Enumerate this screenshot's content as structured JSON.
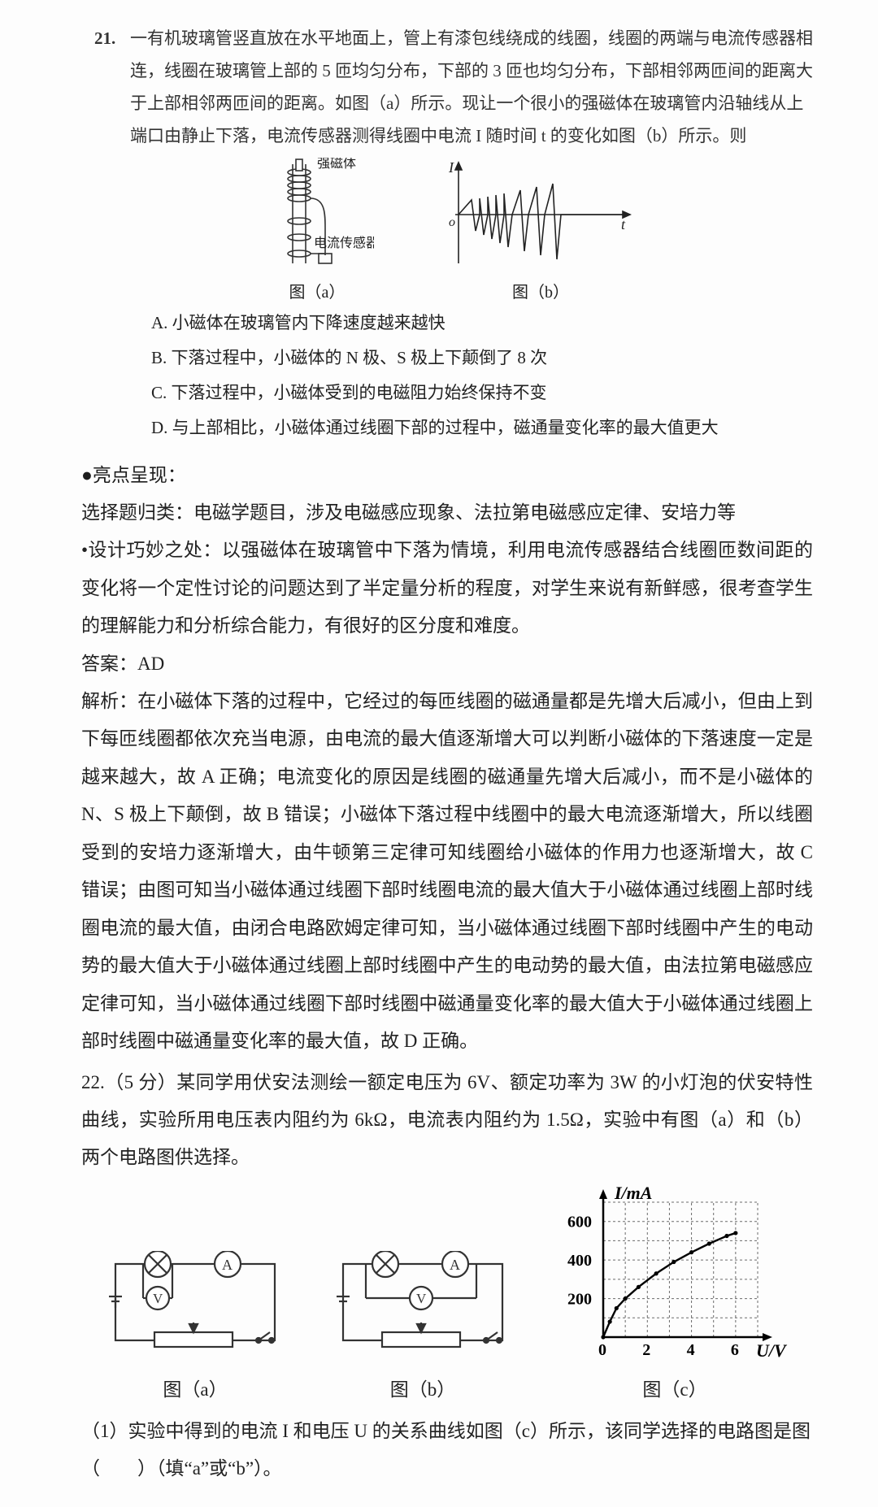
{
  "q21": {
    "num": "21.",
    "body": "一有机玻璃管竖直放在水平地面上，管上有漆包线绕成的线圈，线圈的两端与电流传感器相连，线圈在玻璃管上部的 5 匝均匀分布，下部的 3 匝也均匀分布，下部相邻两匝间的距离大于上部相邻两匝间的距离。如图（a）所示。现让一个很小的强磁体在玻璃管内沿轴线从上端口由静止下落，电流传感器测得线圈中电流 I 随时间 t 的变化如图（b）所示。则",
    "figA": {
      "cap": "图（a）",
      "label_magnet": "强磁体",
      "label_sensor": "电流传感器",
      "colors": {
        "stroke": "#333",
        "bg": "#ffffff"
      }
    },
    "figB": {
      "cap": "图（b）",
      "ylabel": "I",
      "xlabel": "t",
      "peaks": [
        {
          "x": 16,
          "up": 18,
          "dn": 20
        },
        {
          "x": 26,
          "up": 20,
          "dn": 25
        },
        {
          "x": 36,
          "up": 22,
          "dn": 30
        },
        {
          "x": 46,
          "up": 24,
          "dn": 35
        },
        {
          "x": 56,
          "up": 26,
          "dn": 40
        },
        {
          "x": 76,
          "up": 30,
          "dn": 45
        },
        {
          "x": 96,
          "up": 34,
          "dn": 50
        },
        {
          "x": 116,
          "up": 38,
          "dn": 55
        }
      ],
      "axis_color": "#222"
    },
    "opts": {
      "A": "A. 小磁体在玻璃管内下降速度越来越快",
      "B": "B. 下落过程中，小磁体的 N 极、S 极上下颠倒了 8 次",
      "C": "C. 下落过程中，小磁体受到的电磁阻力始终保持不变",
      "D": "D. 与上部相比，小磁体通过线圈下部的过程中，磁通量变化率的最大值更大"
    }
  },
  "highlight": {
    "title": "●亮点呈现：",
    "line1": "选择题归类：电磁学题目，涉及电磁感应现象、法拉第电磁感应定律、安培力等",
    "line2": "•设计巧妙之处：以强磁体在玻璃管中下落为情境，利用电流传感器结合线圈匝数间距的变化将一个定性讨论的问题达到了半定量分析的程度，对学生来说有新鲜感，很考查学生的理解能力和分析综合能力，有很好的区分度和难度。",
    "ans": "答案：AD",
    "exp": "解析：在小磁体下落的过程中，它经过的每匝线圈的磁通量都是先增大后减小，但由上到下每匝线圈都依次充当电源，由电流的最大值逐渐增大可以判断小磁体的下落速度一定是越来越大，故 A 正确；电流变化的原因是线圈的磁通量先增大后减小，而不是小磁体的 N、S 极上下颠倒，故 B 错误；小磁体下落过程中线圈中的最大电流逐渐增大，所以线圈受到的安培力逐渐增大，由牛顿第三定律可知线圈给小磁体的作用力也逐渐增大，故 C 错误；由图可知当小磁体通过线圈下部时线圈电流的最大值大于小磁体通过线圈上部时线圈电流的最大值，由闭合电路欧姆定律可知，当小磁体通过线圈下部时线圈中产生的电动势的最大值大于小磁体通过线圈上部时线圈中产生的电动势的最大值，由法拉第电磁感应定律可知，当小磁体通过线圈下部时线圈中磁通量变化率的最大值大于小磁体通过线圈上部时线圈中磁通量变化率的最大值，故 D 正确。"
  },
  "q22": {
    "text": "22.（5 分）某同学用伏安法测绘一额定电压为 6V、额定功率为 3W 的小灯泡的伏安特性曲线，实验所用电压表内阻约为 6kΩ，电流表内阻约为 1.5Ω，实验中有图（a）和（b）两个电路图供选择。",
    "capA": "图（a）",
    "capB": "图（b）",
    "capC": "图（c）",
    "graph": {
      "ylabel": "I/mA",
      "xlabel": "U/V",
      "xticks": [
        "0",
        "2",
        "4",
        "6"
      ],
      "yticks": [
        "200",
        "400",
        "600"
      ],
      "xlim": [
        0,
        7
      ],
      "ylim": [
        0,
        700
      ],
      "grid_color": "#6b6b6b",
      "axis_color": "#000",
      "points": [
        [
          0,
          0
        ],
        [
          0.3,
          80
        ],
        [
          0.6,
          150
        ],
        [
          1.0,
          200
        ],
        [
          1.6,
          260
        ],
        [
          2.4,
          330
        ],
        [
          3.2,
          390
        ],
        [
          4.0,
          440
        ],
        [
          4.8,
          485
        ],
        [
          5.6,
          525
        ],
        [
          6.0,
          540
        ]
      ]
    },
    "sub1": "（1）实验中得到的电流 I 和电压 U 的关系曲线如图（c）所示，该同学选择的电路图是图（　　）（填“a”或“b”）。"
  }
}
